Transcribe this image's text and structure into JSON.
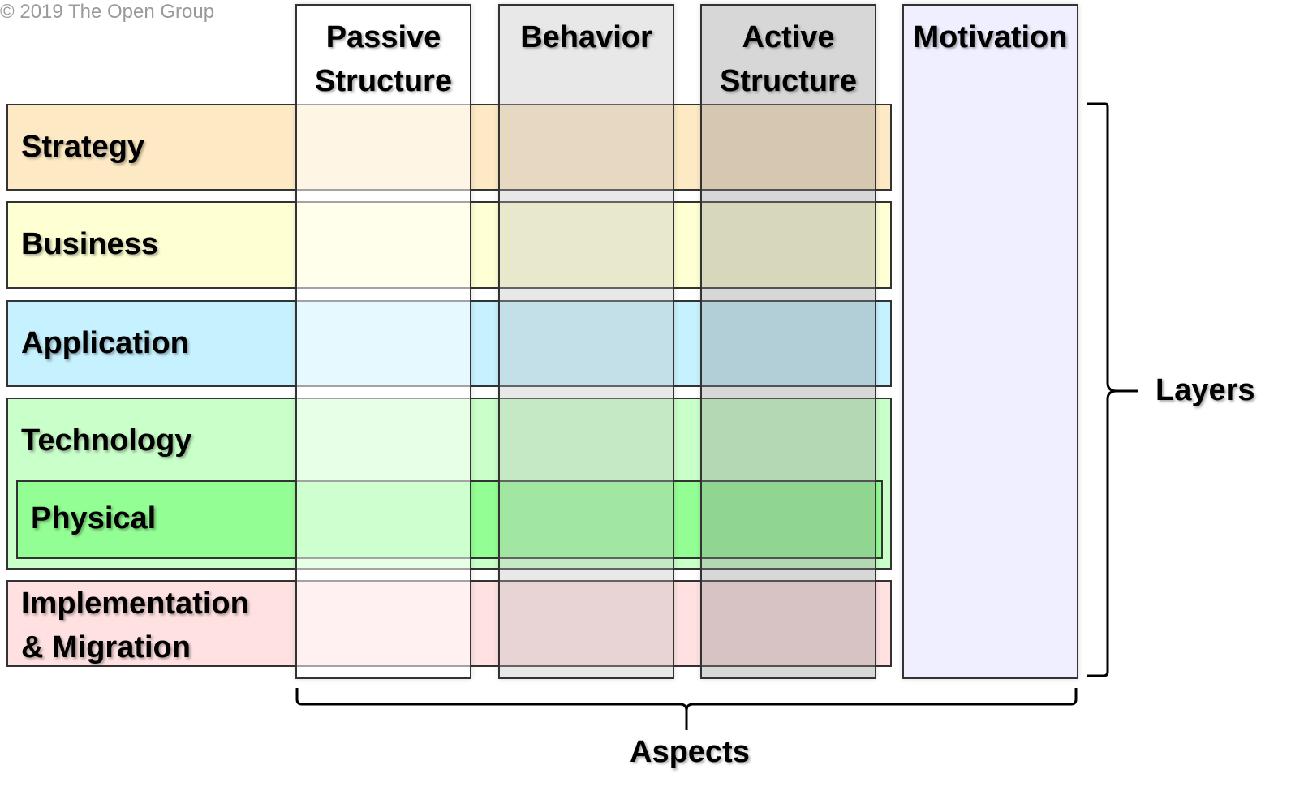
{
  "copyright": "© 2019 The Open Group",
  "layers": [
    {
      "label": "Strategy",
      "color": "#fde9c4"
    },
    {
      "label": "Business",
      "color": "#ffffd4"
    },
    {
      "label": "Application",
      "color": "#c6f1ff"
    },
    {
      "label": "Technology",
      "color": "#c9ffc9"
    },
    {
      "label": "Physical",
      "color": "#93fe93"
    },
    {
      "label": "Implementation\n& Migration",
      "color": "#ffe1e1"
    }
  ],
  "aspects": [
    {
      "label": "Passive\nStructure",
      "color": "rgba(255,255,255,0.55)"
    },
    {
      "label": "Behavior",
      "color": "rgba(190,190,190,0.35)"
    },
    {
      "label": "Active\nStructure",
      "color": "rgba(140,140,140,0.35)"
    },
    {
      "label": "Motivation",
      "color": "#efefff"
    }
  ],
  "bracket_labels": {
    "layers": "Layers",
    "aspects": "Aspects"
  }
}
